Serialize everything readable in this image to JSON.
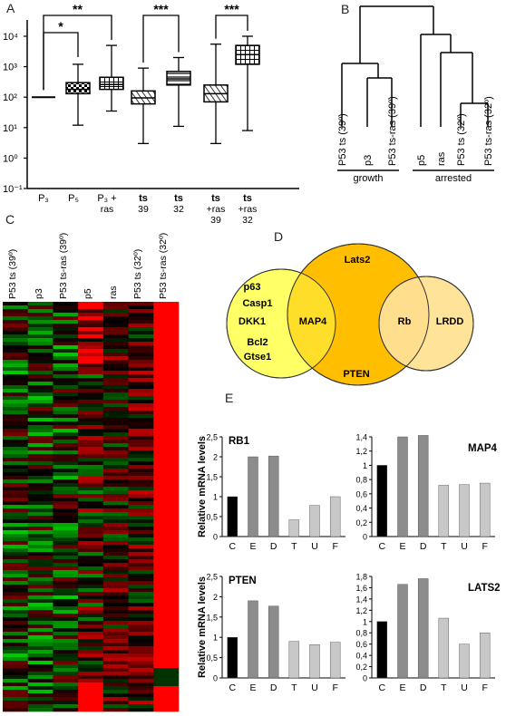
{
  "panels": {
    "A": "A",
    "B": "B",
    "C": "C",
    "D": "D",
    "E": "E"
  },
  "panelA": {
    "ytick_labels": [
      "10⁴",
      "10³",
      "10²",
      "10¹",
      "10⁰",
      "10⁻¹"
    ],
    "significance": [
      "*",
      "**",
      "***",
      "***"
    ],
    "groups": [
      {
        "top": "P₃",
        "sub": "",
        "sub2": ""
      },
      {
        "top": "P₅",
        "sub": "",
        "sub2": ""
      },
      {
        "top": "P₃ +",
        "sub": "ras",
        "sub2": ""
      },
      {
        "top": "ts",
        "sub": "39",
        "sub2": ""
      },
      {
        "top": "ts",
        "sub": "32",
        "sub2": ""
      },
      {
        "top": "ts",
        "sub": "+ras",
        "sub2": "39"
      },
      {
        "top": "ts",
        "sub": "+ras",
        "sub2": "32"
      }
    ]
  },
  "panelB": {
    "leaves": [
      "P53 ts (39º)",
      "p3",
      "P53 ts-ras (39º)",
      "p5",
      "ras",
      "P53 ts (32º)",
      "P53 ts-ras (32º)"
    ],
    "groups": [
      "growth",
      "arrested"
    ]
  },
  "panelC": {
    "columns": [
      "P53 ts (39º)",
      "p3",
      "P53 ts-ras (39º)",
      "p5",
      "ras",
      "P53 ts (32º)",
      "P53 ts-ras (32º)"
    ]
  },
  "panelD": {
    "left_only": [
      "p63",
      "Casp1",
      "DKK1",
      "Bcl2",
      "Gtse1"
    ],
    "left_center": "MAP4",
    "center_top": "Lats2",
    "center_bottom": "PTEN",
    "center_right": "Rb",
    "right_only": "LRDD"
  },
  "panelE": {
    "ylabel": "Relative mRNA levels",
    "categories": [
      "C",
      "E",
      "D",
      "T",
      "U",
      "F"
    ],
    "colors": [
      "#000000",
      "#8c8c8c",
      "#8c8c8c",
      "#c8c8c8",
      "#c8c8c8",
      "#c8c8c8"
    ],
    "charts": [
      {
        "title": "RB1",
        "ymax": 2.5,
        "ticks": [
          "0",
          "0,5",
          "1",
          "1,5",
          "2",
          "2,5"
        ],
        "values": [
          1.0,
          2.0,
          2.02,
          0.42,
          0.78,
          1.0
        ]
      },
      {
        "title": "MAP4",
        "ymax": 1.4,
        "ticks": [
          "0",
          "0,2",
          "0,4",
          "0,6",
          "0,8",
          "1",
          "1,2",
          "1,4"
        ],
        "values": [
          1.0,
          1.4,
          1.42,
          0.72,
          0.73,
          0.75
        ]
      },
      {
        "title": "PTEN",
        "ymax": 2.5,
        "ticks": [
          "0",
          "0,5",
          "1",
          "1,5",
          "2",
          "2,5"
        ],
        "values": [
          1.0,
          1.9,
          1.77,
          0.9,
          0.82,
          0.88
        ]
      },
      {
        "title": "LATS2",
        "ymax": 1.8,
        "ticks": [
          "0",
          "0,2",
          "0,4",
          "0,6",
          "0,8",
          "1",
          "1,2",
          "1,4",
          "1,6",
          "1,8"
        ],
        "values": [
          1.0,
          1.66,
          1.76,
          1.06,
          0.6,
          0.8
        ]
      }
    ]
  },
  "chart_data": [
    {
      "type": "box",
      "panel": "A",
      "scale": "log",
      "ylim": [
        0.1,
        10000
      ],
      "categories": [
        "P3",
        "P5",
        "P3 + ras",
        "ts 39",
        "ts 32",
        "ts +ras 39",
        "ts +ras 32"
      ],
      "boxes": [
        {
          "min": 100,
          "q1": 100,
          "median": 100,
          "q3": 100,
          "max": 100
        },
        {
          "min": 12,
          "q1": 130,
          "median": 180,
          "q3": 300,
          "max": 1200
        },
        {
          "min": 35,
          "q1": 180,
          "median": 260,
          "q3": 450,
          "max": 5000
        },
        {
          "min": 3,
          "q1": 60,
          "median": 95,
          "q3": 160,
          "max": 900
        },
        {
          "min": 11,
          "q1": 250,
          "median": 400,
          "q3": 700,
          "max": 2000
        },
        {
          "min": 3,
          "q1": 70,
          "median": 130,
          "q3": 250,
          "max": 5500
        },
        {
          "min": 8,
          "q1": 1200,
          "median": 2500,
          "q3": 5000,
          "max": 10000
        }
      ]
    },
    {
      "type": "bar",
      "panel": "E",
      "title": "RB1",
      "categories": [
        "C",
        "E",
        "D",
        "T",
        "U",
        "F"
      ],
      "values": [
        1.0,
        2.0,
        2.02,
        0.42,
        0.78,
        1.0
      ],
      "ylim": [
        0,
        2.5
      ]
    },
    {
      "type": "bar",
      "panel": "E",
      "title": "MAP4",
      "categories": [
        "C",
        "E",
        "D",
        "T",
        "U",
        "F"
      ],
      "values": [
        1.0,
        1.4,
        1.42,
        0.72,
        0.73,
        0.75
      ],
      "ylim": [
        0,
        1.4
      ]
    },
    {
      "type": "bar",
      "panel": "E",
      "title": "PTEN",
      "categories": [
        "C",
        "E",
        "D",
        "T",
        "U",
        "F"
      ],
      "values": [
        1.0,
        1.9,
        1.77,
        0.9,
        0.82,
        0.88
      ],
      "ylim": [
        0,
        2.5
      ]
    },
    {
      "type": "bar",
      "panel": "E",
      "title": "LATS2",
      "categories": [
        "C",
        "E",
        "D",
        "T",
        "U",
        "F"
      ],
      "values": [
        1.0,
        1.66,
        1.76,
        1.06,
        0.6,
        0.8
      ],
      "ylim": [
        0,
        1.8
      ]
    }
  ]
}
